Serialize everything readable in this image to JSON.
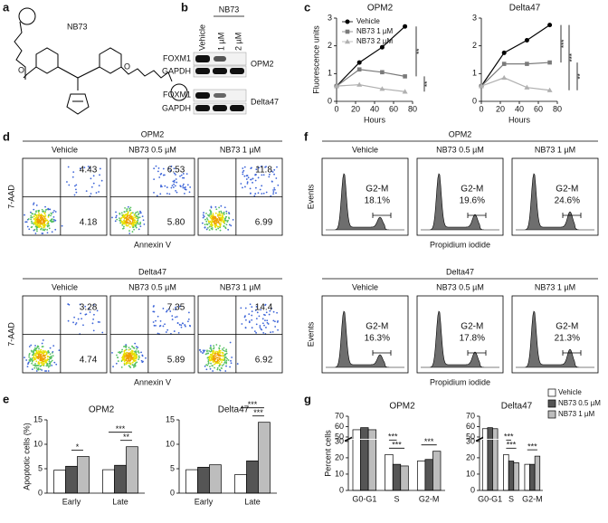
{
  "panel_labels": [
    "a",
    "b",
    "c",
    "d",
    "f",
    "e",
    "g"
  ],
  "structure": {
    "label": "NB73"
  },
  "blot": {
    "treatment": "NB73",
    "lanes": [
      "Vehicle",
      "1 µM",
      "2 µM"
    ],
    "rows": [
      {
        "protein": "FOXM1"
      },
      {
        "protein": "GAPDH"
      },
      {
        "protein": "FOXM1"
      },
      {
        "protein": "GAPDH"
      }
    ],
    "cell_lines": [
      "OPM2",
      "Delta47"
    ]
  },
  "flow_apoptosis": {
    "x_label": "Annexin V",
    "y_label": "7-AAD",
    "groups": [
      {
        "title": "OPM2",
        "plots": [
          {
            "title": "Vehicle",
            "upper_right": "4.43",
            "lower_right": "4.18"
          },
          {
            "title": "NB73 0.5 µM",
            "upper_right": "6.53",
            "lower_right": "5.80"
          },
          {
            "title": "NB73 1 µM",
            "upper_right": "11.8",
            "lower_right": "6.99"
          }
        ]
      },
      {
        "title": "Delta47",
        "plots": [
          {
            "title": "Vehicle",
            "upper_right": "3.28",
            "lower_right": "4.74"
          },
          {
            "title": "NB73 0.5 µM",
            "upper_right": "7.35",
            "lower_right": "5.89"
          },
          {
            "title": "NB73 1 µM",
            "upper_right": "14.4",
            "lower_right": "6.92"
          }
        ]
      }
    ]
  },
  "cell_cycle": {
    "x_label": "Propidium iodide",
    "y_label": "Events",
    "groups": [
      {
        "title": "OPM2",
        "plots": [
          {
            "title": "Vehicle",
            "gate": "G2-M",
            "percent": "18.1%"
          },
          {
            "title": "NB73 0.5 µM",
            "gate": "G2-M",
            "percent": "19.6%"
          },
          {
            "title": "NB73 1 µM",
            "gate": "G2-M",
            "percent": "24.6%"
          }
        ]
      },
      {
        "title": "Delta47",
        "plots": [
          {
            "title": "Vehicle",
            "gate": "G2-M",
            "percent": "16.3%"
          },
          {
            "title": "NB73 0.5 µM",
            "gate": "G2-M",
            "percent": "17.8%"
          },
          {
            "title": "NB73 1 µM",
            "gate": "G2-M",
            "percent": "21.3%"
          }
        ]
      }
    ]
  },
  "chart_data": [
    {
      "type": "line",
      "title": "OPM2",
      "x_label": "Hours",
      "y_label": "Fluorescence units",
      "x": [
        0,
        24,
        48,
        72
      ],
      "xlim": [
        0,
        80
      ],
      "xticks": [
        0,
        20,
        40,
        60,
        80
      ],
      "ylim": [
        0,
        3
      ],
      "yticks": [
        0,
        1,
        2,
        3
      ],
      "legend": "top-left",
      "series": [
        {
          "name": "Vehicle",
          "color": "#000000",
          "marker": "circle",
          "values": [
            0.55,
            1.4,
            1.95,
            2.7
          ]
        },
        {
          "name": "NB73 1 µM",
          "color": "#7a7a7a",
          "marker": "square",
          "values": [
            0.55,
            1.15,
            1.05,
            0.9
          ]
        },
        {
          "name": "NB73 2 µM",
          "color": "#b0b0b0",
          "marker": "triangle",
          "values": [
            0.55,
            0.6,
            0.45,
            0.35
          ]
        }
      ],
      "annotations": [
        "**",
        "**"
      ]
    },
    {
      "type": "line",
      "title": "Delta47",
      "x_label": "Hours",
      "x": [
        0,
        24,
        48,
        72
      ],
      "xlim": [
        0,
        80
      ],
      "xticks": [
        0,
        20,
        40,
        60,
        80
      ],
      "ylim": [
        0,
        3
      ],
      "yticks": [
        0,
        1,
        2,
        3
      ],
      "series": [
        {
          "color": "#000000",
          "marker": "circle",
          "values": [
            0.55,
            1.75,
            2.2,
            2.75
          ]
        },
        {
          "color": "#7a7a7a",
          "marker": "square",
          "values": [
            0.55,
            1.35,
            1.35,
            1.4
          ]
        },
        {
          "color": "#b0b0b0",
          "marker": "triangle",
          "values": [
            0.55,
            0.85,
            0.5,
            0.4
          ]
        }
      ],
      "annotations": [
        "***",
        "***",
        "**"
      ]
    },
    {
      "type": "bar",
      "title": "OPM2",
      "y_label": "Apoptotic cells (%)",
      "categories": [
        "Early",
        "Late"
      ],
      "ylim": [
        0,
        15
      ],
      "yticks": [
        0,
        5,
        10,
        15
      ],
      "series": [
        {
          "color": "#ffffff",
          "values": [
            4.7,
            4.8
          ]
        },
        {
          "color": "#555555",
          "values": [
            5.5,
            5.7
          ]
        },
        {
          "color": "#bdbdbd",
          "values": [
            7.5,
            9.5
          ]
        }
      ],
      "annotations": [
        "*",
        "***",
        "**"
      ]
    },
    {
      "type": "bar",
      "title": "Delta47",
      "categories": [
        "Early",
        "Late"
      ],
      "ylim": [
        0,
        15
      ],
      "yticks": [
        0,
        5,
        10,
        15
      ],
      "series": [
        {
          "color": "#ffffff",
          "values": [
            4.8,
            3.8
          ]
        },
        {
          "color": "#555555",
          "values": [
            5.3,
            6.6
          ]
        },
        {
          "color": "#bdbdbd",
          "values": [
            5.8,
            14.5
          ]
        }
      ],
      "annotations": [
        "***",
        "***"
      ]
    },
    {
      "type": "bar",
      "title": "OPM2",
      "y_label": "Percent cells",
      "categories": [
        "G0-G1",
        "S",
        "G2-M"
      ],
      "ylim": [
        0,
        70
      ],
      "yticks": [
        0,
        10,
        20,
        30,
        50,
        60,
        70
      ],
      "y_break": [
        30,
        50
      ],
      "series": [
        {
          "color": "#ffffff",
          "values": [
            57,
            22,
            18
          ]
        },
        {
          "color": "#555555",
          "values": [
            59,
            16,
            19
          ]
        },
        {
          "color": "#bdbdbd",
          "values": [
            57,
            15,
            24
          ]
        }
      ],
      "annotations": [
        "***",
        "***",
        "***"
      ]
    },
    {
      "type": "bar",
      "title": "Delta47",
      "categories": [
        "G0-G1",
        "S",
        "G2-M"
      ],
      "ylim": [
        0,
        70
      ],
      "yticks": [
        0,
        10,
        20,
        30,
        50,
        60,
        70
      ],
      "y_break": [
        30,
        50
      ],
      "legend": "right",
      "series": [
        {
          "name": "Vehicle",
          "color": "#ffffff",
          "values": [
            58,
            22,
            16
          ]
        },
        {
          "name": "NB73 0.5 µM",
          "color": "#555555",
          "values": [
            59,
            18,
            16
          ]
        },
        {
          "name": "NB73 1 µM",
          "color": "#bdbdbd",
          "values": [
            58,
            17,
            21
          ]
        }
      ],
      "annotations": [
        "***",
        "***",
        "***"
      ]
    }
  ]
}
